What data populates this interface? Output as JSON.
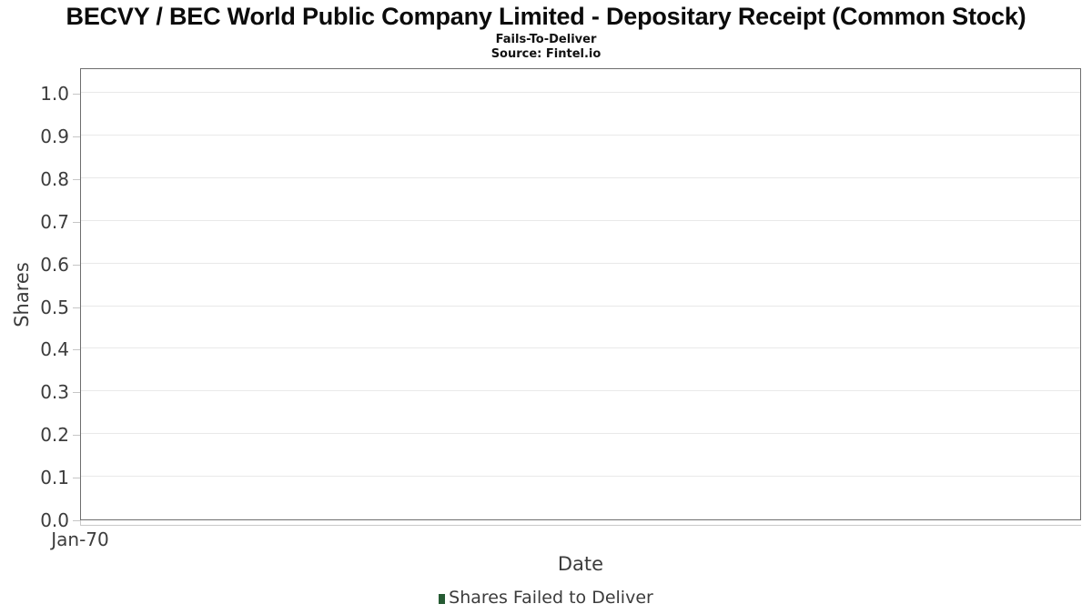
{
  "header": {
    "title": "BECVY / BEC World Public Company Limited - Depositary Receipt (Common Stock)",
    "subtitle": "Fails-To-Deliver",
    "source": "Source: Fintel.io"
  },
  "chart_data": {
    "type": "bar",
    "title": "BECVY / BEC World Public Company Limited - Depositary Receipt (Common Stock)",
    "subtitle": "Fails-To-Deliver",
    "source": "Source: Fintel.io",
    "xlabel": "Date",
    "ylabel": "Shares",
    "x_tick_labels": [
      "Jan-70"
    ],
    "y_tick_labels": [
      "0.0",
      "0.1",
      "0.2",
      "0.3",
      "0.4",
      "0.5",
      "0.6",
      "0.7",
      "0.8",
      "0.9",
      "1.0"
    ],
    "ylim": [
      0,
      1.06
    ],
    "grid": true,
    "legend_position": "bottom",
    "series": [
      {
        "name": "Shares Failed to Deliver",
        "color": "#265b33",
        "values": []
      }
    ]
  },
  "legend": {
    "label": "Shares Failed to Deliver",
    "marker_color": "#265b33"
  },
  "colors": {
    "plot_border": "#6e6e6e",
    "gridline": "#e9e9e9",
    "tick": "#c6c6c6",
    "axis_line": "#c9c9c9",
    "text": "#3c3c3c",
    "title_text": "#0b0b0b",
    "legend_marker": "#265b33",
    "background": "#ffffff"
  }
}
